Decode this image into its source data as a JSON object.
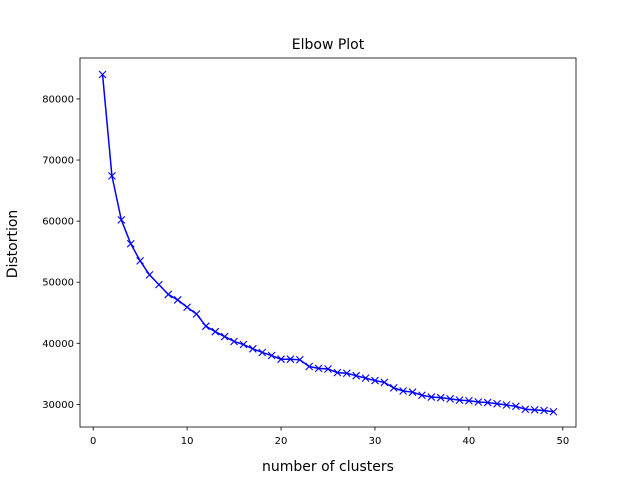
{
  "chart_data": {
    "type": "line",
    "title": "Elbow Plot",
    "xlabel": "number of clusters",
    "ylabel": "Distortion",
    "xlim": [
      -1.4,
      51.4
    ],
    "ylim": [
      26300,
      86700
    ],
    "xticks": [
      0,
      10,
      20,
      30,
      40,
      50
    ],
    "yticks": [
      30000,
      40000,
      50000,
      60000,
      70000,
      80000
    ],
    "xtick_labels": [
      "0",
      "10",
      "20",
      "30",
      "40",
      "50"
    ],
    "ytick_labels": [
      "30000",
      "40000",
      "50000",
      "60000",
      "70000",
      "80000"
    ],
    "grid": false,
    "marker": "x",
    "color": "#0000ff",
    "x": [
      1,
      2,
      3,
      4,
      5,
      6,
      7,
      8,
      9,
      10,
      11,
      12,
      13,
      14,
      15,
      16,
      17,
      18,
      19,
      20,
      21,
      22,
      23,
      24,
      25,
      26,
      27,
      28,
      29,
      30,
      31,
      32,
      33,
      34,
      35,
      36,
      37,
      38,
      39,
      40,
      41,
      42,
      43,
      44,
      45,
      46,
      47,
      48,
      49
    ],
    "y": [
      84000,
      67400,
      60200,
      56300,
      53500,
      51200,
      49600,
      48000,
      47100,
      45900,
      44800,
      42800,
      41900,
      41100,
      40300,
      39800,
      39100,
      38500,
      38000,
      37400,
      37400,
      37300,
      36200,
      35900,
      35800,
      35200,
      35100,
      34700,
      34300,
      33900,
      33600,
      32700,
      32200,
      32000,
      31500,
      31200,
      31100,
      30900,
      30700,
      30600,
      30400,
      30300,
      30100,
      29900,
      29700,
      29200,
      29100,
      29000,
      28800
    ]
  }
}
